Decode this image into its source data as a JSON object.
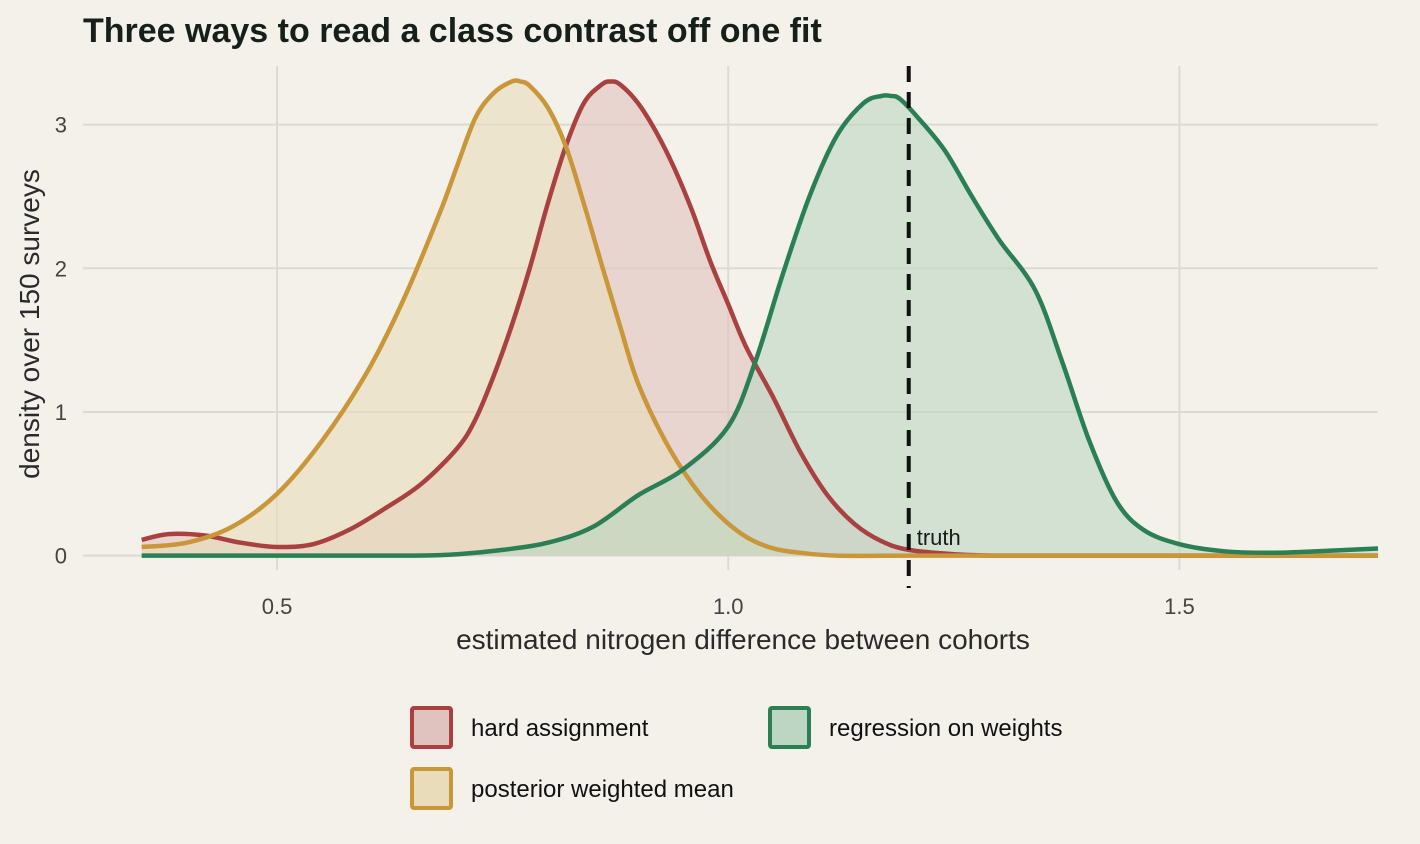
{
  "chart_data": {
    "type": "area",
    "title": "Three ways to read a class contrast off one fit",
    "xlabel": "estimated nitrogen difference between cohorts",
    "ylabel": "density over 150 surveys",
    "xlim": [
      0.285,
      1.72
    ],
    "ylim": [
      -0.1,
      3.45
    ],
    "x_ticks": [
      0.5,
      1.0,
      1.5
    ],
    "x_tick_labels": [
      "0.5",
      "1.0",
      "1.5"
    ],
    "y_ticks": [
      0,
      1,
      2,
      3
    ],
    "y_tick_labels": [
      "0",
      "1",
      "2",
      "3"
    ],
    "grid": true,
    "legend_position": "bottom",
    "reference_line": {
      "x": 1.2,
      "label": "truth",
      "style": "dashed",
      "color": "#111111"
    },
    "series": [
      {
        "name": "hard assignment",
        "color": "#a8413f",
        "fill": "#e0c3be",
        "x": [
          0.35,
          0.38,
          0.42,
          0.46,
          0.5,
          0.54,
          0.58,
          0.62,
          0.66,
          0.7,
          0.72,
          0.74,
          0.76,
          0.78,
          0.8,
          0.82,
          0.84,
          0.86,
          0.87,
          0.88,
          0.9,
          0.92,
          0.94,
          0.96,
          0.98,
          1.0,
          1.02,
          1.05,
          1.08,
          1.11,
          1.14,
          1.17,
          1.2,
          1.25,
          1.3,
          1.4,
          1.5,
          1.6,
          1.72
        ],
        "y": [
          0.11,
          0.15,
          0.14,
          0.09,
          0.06,
          0.08,
          0.18,
          0.33,
          0.5,
          0.75,
          0.95,
          1.25,
          1.6,
          2.0,
          2.45,
          2.85,
          3.15,
          3.28,
          3.3,
          3.28,
          3.15,
          2.95,
          2.7,
          2.4,
          2.05,
          1.75,
          1.45,
          1.1,
          0.72,
          0.42,
          0.22,
          0.1,
          0.04,
          0.01,
          0.0,
          0.0,
          0.0,
          0.0,
          0.0
        ]
      },
      {
        "name": "posterior weighted mean",
        "color": "#c9973a",
        "fill": "#e8dcbb",
        "x": [
          0.35,
          0.4,
          0.45,
          0.5,
          0.55,
          0.6,
          0.64,
          0.68,
          0.7,
          0.72,
          0.74,
          0.76,
          0.77,
          0.78,
          0.8,
          0.82,
          0.84,
          0.86,
          0.88,
          0.9,
          0.93,
          0.96,
          0.99,
          1.02,
          1.05,
          1.08,
          1.12,
          1.2,
          1.3,
          1.5,
          1.72
        ],
        "y": [
          0.06,
          0.09,
          0.2,
          0.43,
          0.8,
          1.28,
          1.78,
          2.38,
          2.72,
          3.05,
          3.22,
          3.3,
          3.3,
          3.27,
          3.12,
          2.85,
          2.45,
          2.02,
          1.6,
          1.2,
          0.8,
          0.5,
          0.28,
          0.13,
          0.05,
          0.02,
          0.0,
          0.0,
          0.0,
          0.0,
          0.0
        ]
      },
      {
        "name": "regression on weights",
        "color": "#2a7f55",
        "fill": "#bdd6c4",
        "x": [
          0.35,
          0.5,
          0.65,
          0.7,
          0.75,
          0.8,
          0.85,
          0.9,
          0.95,
          1.0,
          1.03,
          1.06,
          1.09,
          1.12,
          1.15,
          1.17,
          1.18,
          1.19,
          1.21,
          1.24,
          1.27,
          1.3,
          1.34,
          1.37,
          1.4,
          1.43,
          1.46,
          1.5,
          1.55,
          1.6,
          1.65,
          1.72
        ],
        "y": [
          0.0,
          0.0,
          0.0,
          0.01,
          0.04,
          0.09,
          0.2,
          0.42,
          0.6,
          0.9,
          1.35,
          1.95,
          2.5,
          2.92,
          3.15,
          3.2,
          3.2,
          3.18,
          3.05,
          2.82,
          2.5,
          2.2,
          1.85,
          1.35,
          0.8,
          0.38,
          0.18,
          0.08,
          0.03,
          0.02,
          0.03,
          0.05
        ]
      }
    ],
    "legend": [
      {
        "label": "hard assignment",
        "color": "#a8413f",
        "fill": "#e0c3be"
      },
      {
        "label": "regression on weights",
        "color": "#2a7f55",
        "fill": "#bdd6c4"
      },
      {
        "label": "posterior weighted mean",
        "color": "#c9973a",
        "fill": "#e8dcbb"
      }
    ]
  }
}
